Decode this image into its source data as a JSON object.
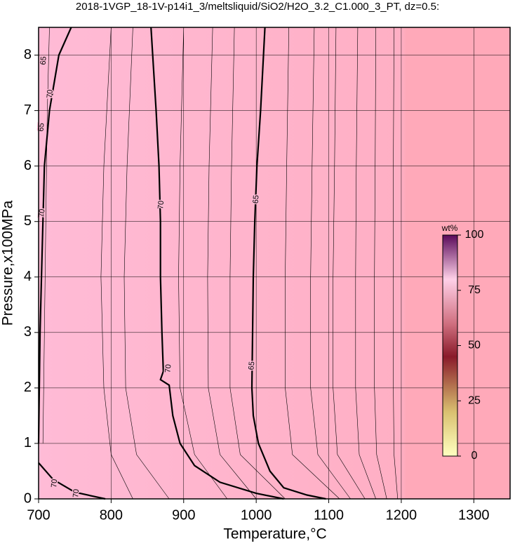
{
  "chart_data": {
    "type": "contour",
    "title": "2018-1VGP_18-1V-p14i1_3/meltsliquid/SiO2/H2O_3.2_C1.000_3_PT, dz=0.5:",
    "x_label": "Temperature,°C",
    "y_label": "Pressure,x100MPa",
    "xlim": [
      700,
      1350
    ],
    "ylim": [
      0,
      8.5
    ],
    "xticks": [
      700,
      800,
      900,
      1000,
      1100,
      1200,
      1300
    ],
    "yticks": [
      0,
      1,
      2,
      3,
      4,
      5,
      6,
      7,
      8
    ],
    "grid": true,
    "colorbar": {
      "label": "wt%",
      "lim": [
        0,
        100
      ],
      "ticks": [
        0,
        25,
        50,
        75,
        100
      ]
    },
    "contours": [
      {
        "level": 70,
        "bold": true,
        "x": [
          745,
          728,
          715,
          708,
          706,
          704,
          702,
          701,
          700
        ],
        "y": [
          8.5,
          8,
          7,
          6,
          5,
          4,
          3,
          2,
          1
        ]
      },
      {
        "level": 70,
        "bold": true,
        "x": [
          700,
          720,
          750,
          792
        ],
        "y": [
          0.65,
          0.35,
          0.12,
          0
        ]
      },
      {
        "level": 70,
        "bold": true,
        "x": [
          855,
          862,
          866,
          868,
          868,
          870,
          872,
          868,
          880,
          885,
          895,
          915,
          950,
          1000,
          1038
        ],
        "y": [
          8.5,
          7,
          6,
          5,
          4,
          3,
          2.3,
          2.15,
          2.05,
          1.5,
          1.0,
          0.6,
          0.3,
          0.1,
          0
        ]
      },
      {
        "level": 65,
        "bold": true,
        "x": [
          1012,
          1006,
          1001,
          998,
          996,
          995,
          994,
          996,
          1003,
          1019,
          1038,
          1070,
          1096
        ],
        "y": [
          8.5,
          7,
          6,
          5,
          4,
          3,
          2,
          1.5,
          1.0,
          0.5,
          0.2,
          0.07,
          0
        ]
      },
      {
        "level": null,
        "bold": false,
        "x": [
          715,
          712,
          710,
          708,
          706
        ],
        "y": [
          8.5,
          7,
          5,
          3,
          1
        ]
      },
      {
        "level": null,
        "bold": false,
        "x": [
          800,
          790,
          786,
          790,
          800,
          830
        ],
        "y": [
          8.5,
          6,
          4,
          2,
          0.8,
          0
        ]
      },
      {
        "level": null,
        "bold": false,
        "x": [
          830,
          822,
          818,
          820,
          835,
          880
        ],
        "y": [
          8.5,
          6,
          4,
          2,
          0.8,
          0
        ]
      },
      {
        "level": null,
        "bold": false,
        "x": [
          900,
          895,
          893,
          895,
          915,
          960
        ],
        "y": [
          8.5,
          6,
          4,
          2,
          0.8,
          0
        ]
      },
      {
        "level": null,
        "bold": false,
        "x": [
          940,
          935,
          933,
          934,
          950,
          1000
        ],
        "y": [
          8.5,
          6,
          4,
          2,
          0.8,
          0
        ]
      },
      {
        "level": null,
        "bold": false,
        "x": [
          970,
          966,
          964,
          964,
          978,
          1040
        ],
        "y": [
          8.5,
          6,
          4,
          2,
          0.8,
          0
        ]
      },
      {
        "level": null,
        "bold": false,
        "x": [
          1045,
          1042,
          1040,
          1040,
          1050,
          1115
        ],
        "y": [
          8.5,
          6,
          4,
          2,
          0.8,
          0
        ]
      },
      {
        "level": null,
        "bold": false,
        "x": [
          1080,
          1077,
          1075,
          1075,
          1085,
          1130
        ],
        "y": [
          8.5,
          6,
          4,
          2,
          0.8,
          0
        ]
      },
      {
        "level": null,
        "bold": false,
        "x": [
          1110,
          1108,
          1106,
          1106,
          1112,
          1150
        ],
        "y": [
          8.5,
          6,
          4,
          2,
          0.8,
          0
        ]
      },
      {
        "level": null,
        "bold": false,
        "x": [
          1140,
          1138,
          1137,
          1137,
          1142,
          1165
        ],
        "y": [
          8.5,
          6,
          4,
          2,
          0.8,
          0
        ]
      },
      {
        "level": null,
        "bold": false,
        "x": [
          1165,
          1164,
          1163,
          1163,
          1166,
          1180
        ],
        "y": [
          8.5,
          6,
          4,
          2,
          0.8,
          0
        ]
      },
      {
        "level": null,
        "bold": false,
        "x": [
          1190,
          1189,
          1189,
          1189,
          1190,
          1195
        ],
        "y": [
          8.5,
          6,
          4,
          2,
          0.8,
          0
        ]
      }
    ],
    "contour_labels": [
      {
        "value": 70,
        "x": 869,
        "y": 5.3
      },
      {
        "value": 65,
        "x": 1000,
        "y": 5.4
      },
      {
        "value": 65,
        "x": 994,
        "y": 2.4
      },
      {
        "value": 70,
        "x": 879,
        "y": 2.35
      },
      {
        "value": 70,
        "x": 716,
        "y": 7.3
      },
      {
        "value": 65,
        "x": 704,
        "y": 6.7
      },
      {
        "value": 65,
        "x": 707,
        "y": 7.9
      },
      {
        "value": 70,
        "x": 705,
        "y": 5.15
      },
      {
        "value": 70,
        "x": 722,
        "y": 0.28
      },
      {
        "value": 70,
        "x": 752,
        "y": 0.1
      }
    ]
  }
}
